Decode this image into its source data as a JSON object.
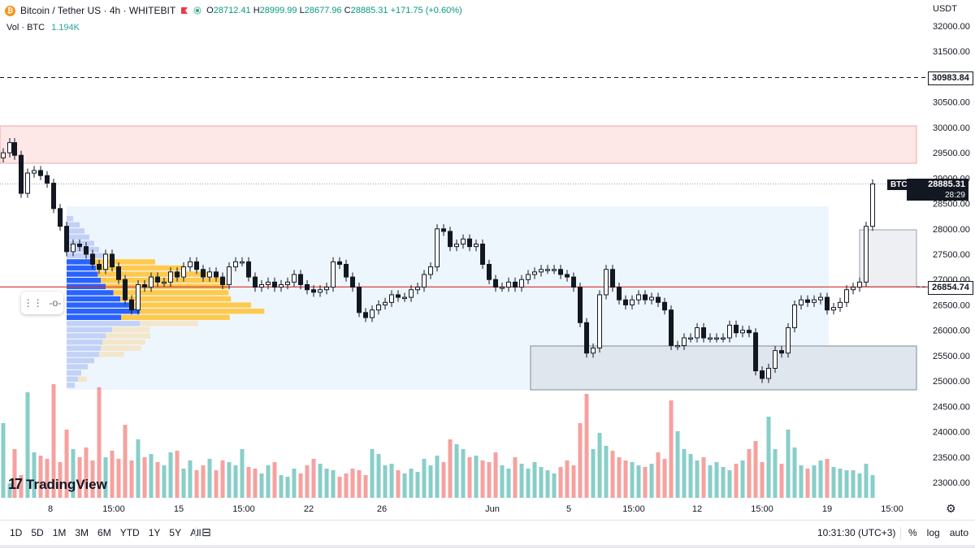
{
  "header": {
    "symbol": "Bitcoin / Tether US · 4h · WHITEBIT",
    "o": "28712.41",
    "h": "28999.99",
    "l": "28677.96",
    "c": "28885.31",
    "change": "+171.75 (+0.60%)",
    "o_label": "O",
    "h_label": "H",
    "l_label": "L",
    "c_label": "C"
  },
  "volume": {
    "label": "Vol · BTC",
    "value": "1.194K"
  },
  "currency": "USDT",
  "price_axis": [
    "32000.00",
    "31500.00",
    "31000.00",
    "30500.00",
    "30000.00",
    "29500.00",
    "29000.00",
    "28500.00",
    "28000.00",
    "27500.00",
    "27000.00",
    "26500.00",
    "26000.00",
    "25500.00",
    "25000.00",
    "24500.00",
    "24000.00",
    "23500.00",
    "23000.00"
  ],
  "levels": {
    "resistance": "30983.84",
    "pivot": "26854.74"
  },
  "last_price": {
    "symbol": "BTCUSDT",
    "price": "28885.31",
    "countdown": "28:29"
  },
  "time_axis": [
    "8",
    "15:00",
    "15",
    "15:00",
    "22",
    "26",
    "Jun",
    "5",
    "15:00",
    "12",
    "15:00",
    "19",
    "15:00"
  ],
  "logo": "TradingView",
  "ranges": [
    "1D",
    "5D",
    "1M",
    "3M",
    "6M",
    "YTD",
    "1Y",
    "5Y",
    "All"
  ],
  "clock": "10:31:30 (UTC+3)",
  "options": [
    "%",
    "log",
    "auto"
  ],
  "colors": {
    "up": "#26a69a",
    "down": "#ef5350",
    "candle": "#131722",
    "pivot": "#d32f2f"
  },
  "icons": {
    "gear": "gear-icon",
    "calendar": "calendar-icon",
    "drag": "drag-handle-icon"
  }
}
